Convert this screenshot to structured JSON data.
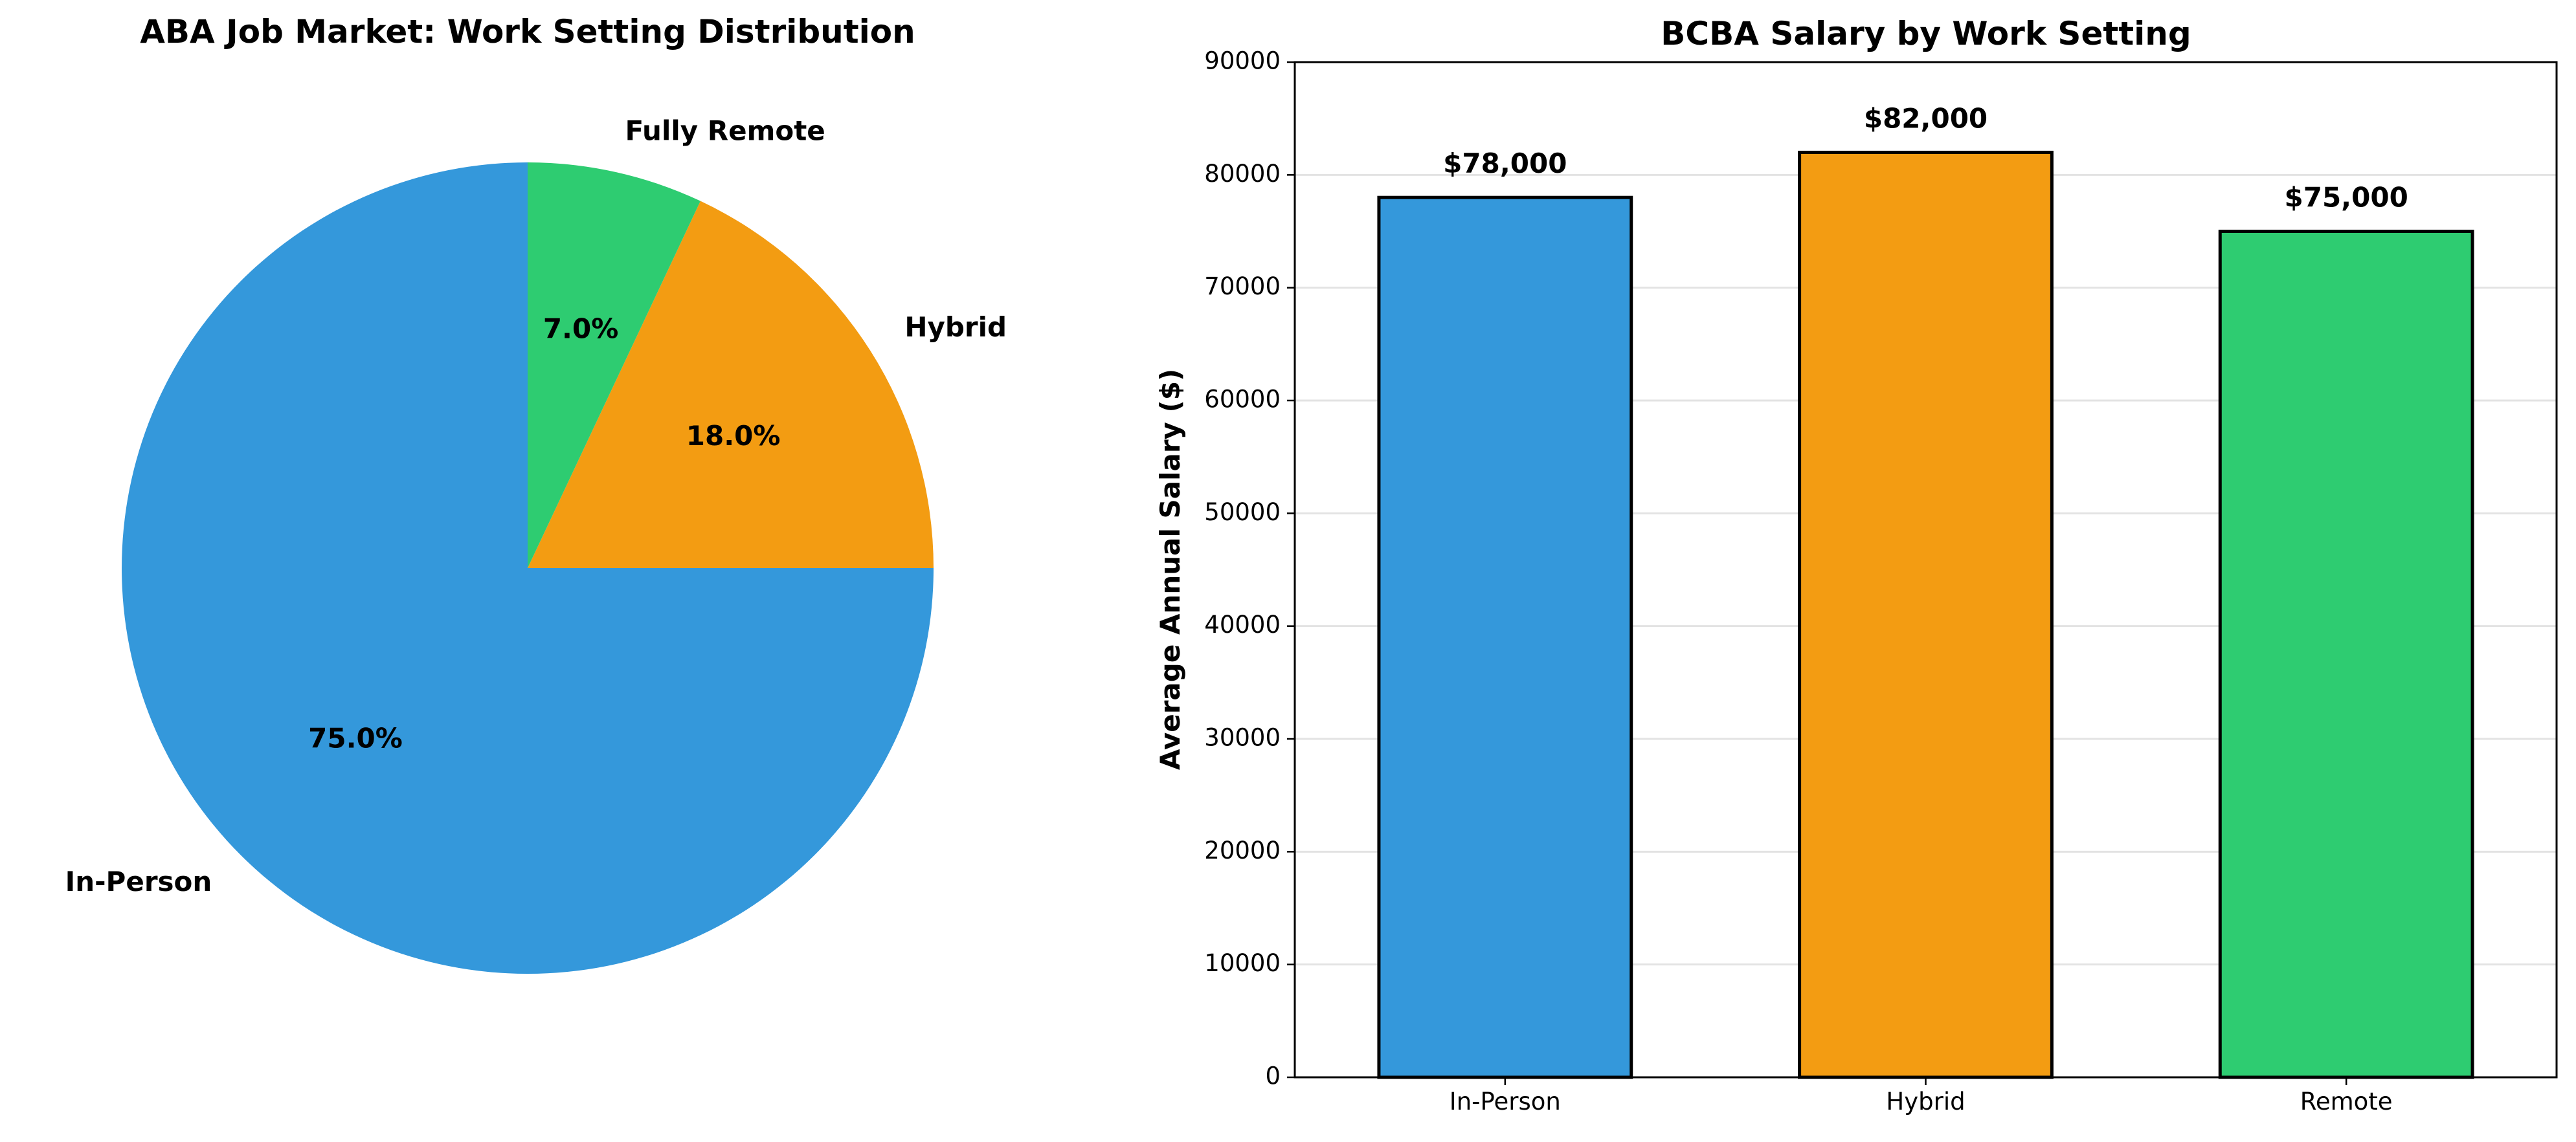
{
  "chart_data": [
    {
      "type": "pie",
      "title": "ABA Job Market: Work Setting Distribution",
      "labels": [
        "In-Person",
        "Hybrid",
        "Fully Remote"
      ],
      "values": [
        75.0,
        18.0,
        7.0
      ],
      "pct_labels": [
        "75.0%",
        "18.0%",
        "7.0%"
      ],
      "colors": [
        "#3498db",
        "#f39c12",
        "#2ecc71"
      ],
      "start_angle": 90
    },
    {
      "type": "bar",
      "title": "BCBA Salary by Work Setting",
      "categories": [
        "In-Person",
        "Hybrid",
        "Remote"
      ],
      "values": [
        78000,
        82000,
        75000
      ],
      "data_labels": [
        "$78,000",
        "$82,000",
        "$75,000"
      ],
      "colors": [
        "#3498db",
        "#f39c12",
        "#2ecc71"
      ],
      "xlabel": "",
      "ylabel": "Average Annual Salary ($)",
      "ylim": [
        0,
        90000
      ],
      "yticks": [
        "0",
        "10000",
        "20000",
        "30000",
        "40000",
        "50000",
        "60000",
        "70000",
        "80000",
        "90000"
      ],
      "grid": "y"
    }
  ]
}
